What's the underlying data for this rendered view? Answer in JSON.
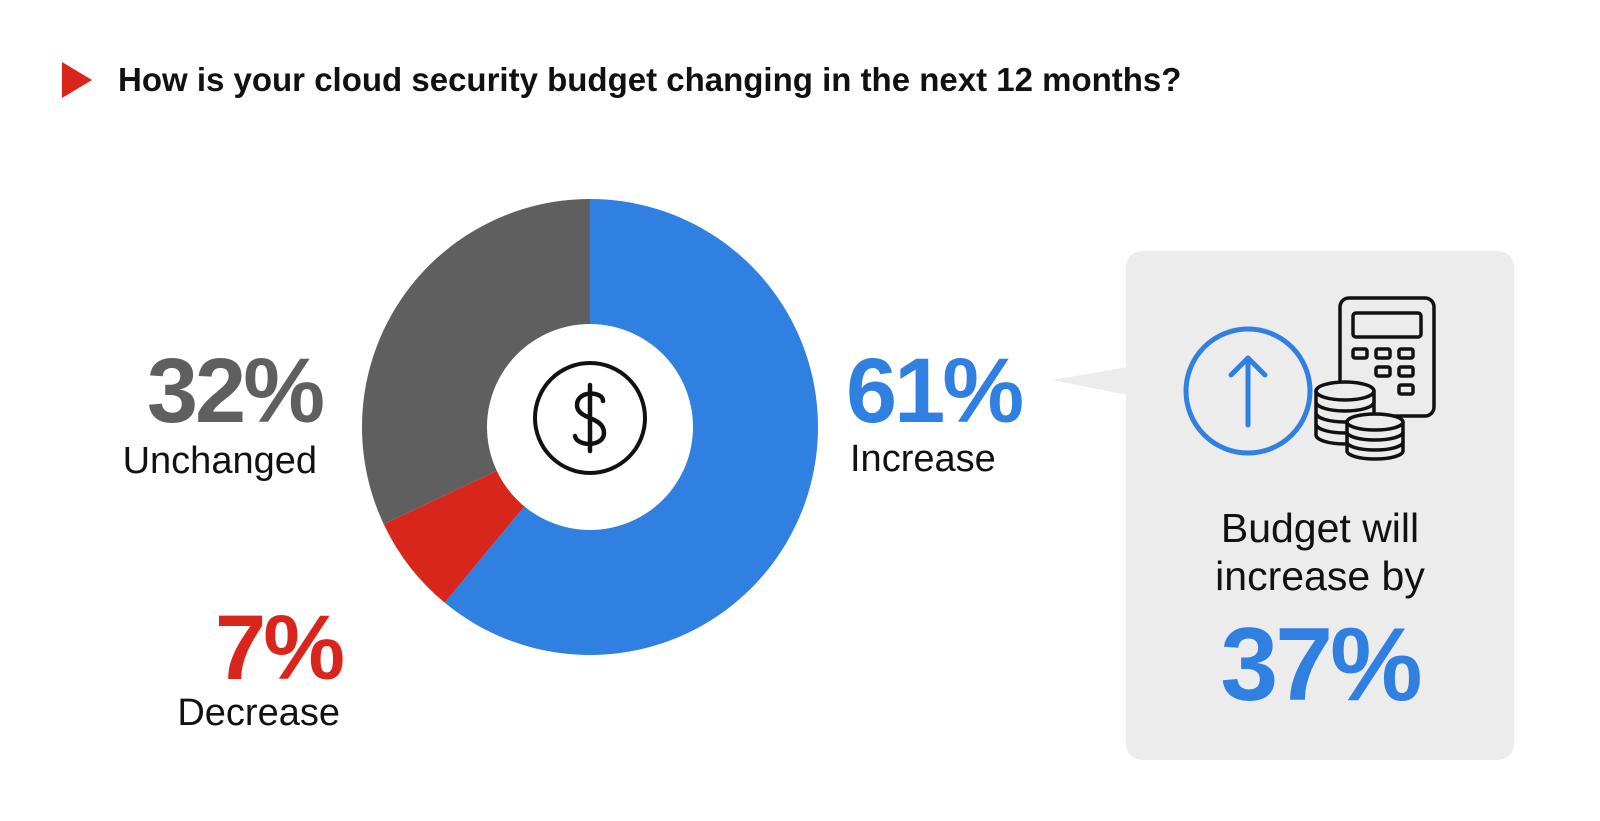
{
  "title": "How is your cloud security budget changing in the next 12 months?",
  "colors": {
    "accent_red": "#d9261c",
    "increase_blue": "#2f80e1",
    "unchanged_gray": "#5f5f5f",
    "callout_bg": "#ececec"
  },
  "chart_data": {
    "type": "pie",
    "title": "How is your cloud security budget changing in the next 12 months?",
    "center_icon": "dollar-icon",
    "slices": [
      {
        "label": "Increase",
        "value": 61,
        "display": "61%",
        "color": "#2f80e1"
      },
      {
        "label": "Decrease",
        "value": 7,
        "display": "7%",
        "color": "#d9261c"
      },
      {
        "label": "Unchanged",
        "value": 32,
        "display": "32%",
        "color": "#5f5f5f"
      }
    ]
  },
  "callout": {
    "text_line1": "Budget will",
    "text_line2": "increase by",
    "value": "37%",
    "icons": [
      "arrow-up-icon",
      "calculator-icon",
      "coins-icon"
    ]
  }
}
